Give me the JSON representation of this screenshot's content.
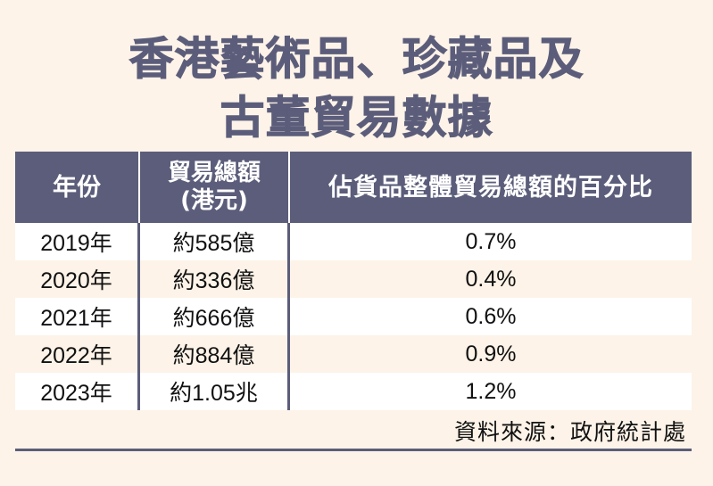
{
  "title": {
    "line1": "香港藝術品、珍藏品及",
    "line2": "古董貿易數據"
  },
  "table": {
    "headers": {
      "year": "年份",
      "total_line1": "貿易總額",
      "total_line2": "(港元)",
      "share": "佔貨品整體貿易總額的百分比"
    },
    "rows": [
      {
        "year": "2019年",
        "total": "約585億",
        "share": "0.7%"
      },
      {
        "year": "2020年",
        "total": "約336億",
        "share": "0.4%"
      },
      {
        "year": "2021年",
        "total": "約666億",
        "share": "0.6%"
      },
      {
        "year": "2022年",
        "total": "約884億",
        "share": "0.9%"
      },
      {
        "year": "2023年",
        "total": "約1.05兆",
        "share": "1.2%"
      }
    ]
  },
  "source": "資料來源：政府統計處",
  "colors": {
    "background": "#fdf3e8",
    "accent": "#5b5d7a",
    "row_white": "#ffffff",
    "text": "#111111"
  }
}
